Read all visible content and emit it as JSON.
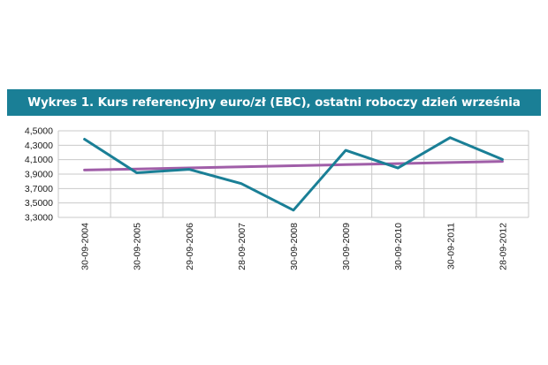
{
  "chart_data": {
    "type": "line",
    "title": "Wykres 1. Kurs referencyjny euro/zł (EBC), ostatni roboczy dzień września",
    "categories": [
      "30-09-2004",
      "30-09-2005",
      "29-09-2006",
      "28-09-2007",
      "30-09-2008",
      "30-09-2009",
      "30-09-2010",
      "30-09-2011",
      "28-09-2012"
    ],
    "series": [
      {
        "values": [
          4.3838,
          3.9182,
          3.9663,
          3.7692,
          3.4005,
          4.2295,
          3.9847,
          4.4058,
          4.1038
        ],
        "color": "#1a7f96"
      },
      {
        "values": [
          3.956,
          3.971,
          3.986,
          4.001,
          4.016,
          4.031,
          4.046,
          4.061,
          4.076
        ],
        "color": "#a05ea8"
      }
    ],
    "yticks": [
      "4,5000",
      "4,3000",
      "4,1000",
      "3,9000",
      "3,7000",
      "3,5000",
      "3,3000"
    ],
    "ylim": [
      3.3,
      4.5
    ],
    "grid": true,
    "legend": "none"
  }
}
